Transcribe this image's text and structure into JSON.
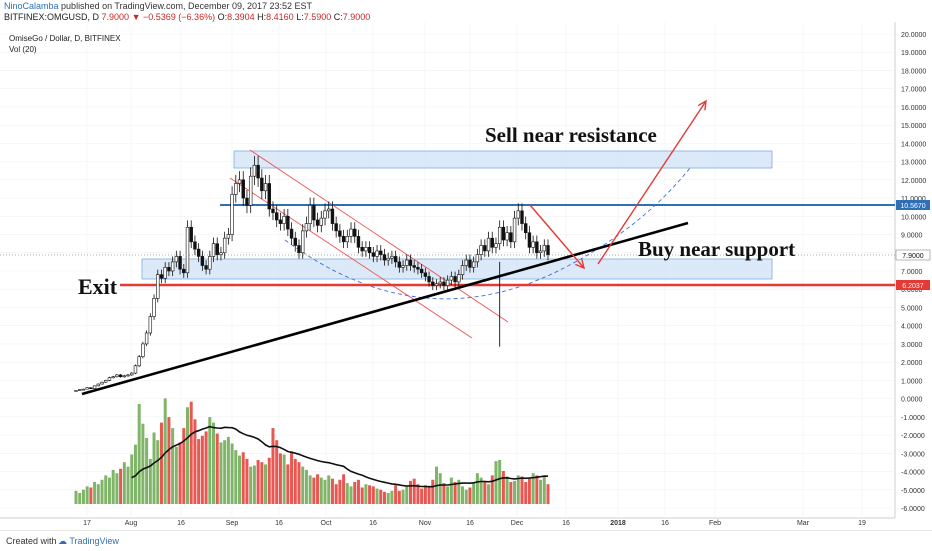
{
  "header": {
    "author": "NinoCalamba",
    "published": "published on TradingView.com, December 09, 2017 23:52 EST",
    "symbol": "BITFINEX:OMGUSD, D",
    "last": "7.9000",
    "change": "−0.5369 (−6.36%)",
    "o_label": "O:",
    "o": "8.3904",
    "h_label": "H:",
    "h": "8.4160",
    "l_label": "L:",
    "l": "7.5900",
    "c_label": "C:",
    "c": "7.9000"
  },
  "legend": {
    "title": "OmiseGo / Dollar, D, BITFINEX",
    "volume": "Vol (20)"
  },
  "annotations": {
    "sell": "Sell near resistance",
    "buy": "Buy near support",
    "exit": "Exit"
  },
  "price_tags": {
    "resistance": "10.5670",
    "last": "7.9000",
    "support": "6.2037"
  },
  "footer": {
    "created": "Created with",
    "brand": "TradingView"
  },
  "colors": {
    "up": "#6aa84f",
    "down": "#e53935",
    "resistance_line": "#2f6fb5",
    "support_line": "#e53935",
    "zone_fill": "#cfe2f6",
    "zone_stroke": "#7aaee0",
    "trendline": "#000000",
    "channel": "#ef5350"
  },
  "chart_data": {
    "type": "candlestick",
    "symbol": "OMGUSD",
    "exchange": "BITFINEX",
    "timeframe": "D",
    "x_ticks": [
      "17",
      "Aug",
      "16",
      "Sep",
      "16",
      "Oct",
      "16",
      "Nov",
      "16",
      "Dec",
      "16",
      "2018",
      "16",
      "Feb",
      "Mar",
      "19"
    ],
    "y_ticks": [
      "20.0000",
      "19.0000",
      "18.0000",
      "17.0000",
      "16.0000",
      "15.0000",
      "14.0000",
      "13.0000",
      "12.0000",
      "11.0000",
      "10.0000",
      "9.0000",
      "8.0000",
      "7.0000",
      "6.0000",
      "5.0000",
      "4.0000",
      "3.0000",
      "2.0000",
      "1.0000",
      "0.0000",
      "-1.0000",
      "-2.0000",
      "-3.0000",
      "-4.0000",
      "-5.0000",
      "-6.0000"
    ],
    "ylim": [
      -6.5,
      20.5
    ],
    "price_close_series": [
      0.45,
      0.5,
      0.52,
      0.6,
      0.55,
      0.7,
      0.8,
      0.9,
      1.0,
      1.15,
      1.2,
      1.3,
      1.2,
      1.25,
      1.3,
      1.4,
      1.8,
      2.3,
      3.0,
      3.6,
      4.5,
      5.5,
      6.8,
      6.6,
      7.2,
      7.0,
      7.5,
      7.8,
      7.1,
      6.9,
      9.4,
      8.6,
      8.2,
      7.8,
      7.3,
      7.1,
      7.8,
      8.5,
      7.9,
      8.0,
      8.8,
      9.0,
      11.2,
      11.8,
      12.0,
      11.0,
      10.6,
      12.2,
      12.8,
      12.1,
      11.4,
      11.8,
      10.4,
      10.2,
      9.8,
      9.6,
      10.0,
      9.3,
      8.8,
      8.4,
      8.0,
      9.2,
      9.6,
      10.6,
      9.8,
      9.5,
      9.9,
      10.3,
      10.4,
      9.6,
      9.2,
      8.9,
      8.6,
      8.9,
      9.3,
      8.9,
      8.3,
      8.1,
      8.3,
      8.0,
      7.8,
      8.1,
      7.9,
      7.6,
      7.7,
      7.8,
      7.5,
      7.2,
      7.3,
      7.6,
      7.3,
      7.2,
      7.1,
      6.9,
      6.7,
      6.4,
      6.2,
      6.3,
      6.4,
      6.2,
      6.5,
      6.7,
      6.4,
      6.8,
      7.3,
      7.6,
      7.2,
      7.5,
      7.9,
      8.4,
      8.1,
      8.8,
      8.3,
      8.5,
      9.4,
      8.7,
      9.1,
      8.6,
      9.9,
      10.3,
      9.6,
      9.1,
      8.3,
      8.6,
      8.0,
      8.1,
      8.4,
      7.9
    ],
    "volume_values": [
      1.2,
      1.0,
      1.3,
      1.6,
      1.5,
      2.0,
      1.8,
      2.2,
      2.6,
      2.4,
      3.1,
      2.8,
      3.2,
      3.8,
      3.4,
      4.5,
      5.4,
      9.1,
      7.3,
      6.0,
      4.1,
      6.5,
      5.8,
      7.4,
      9.6,
      7.9,
      6.9,
      5.2,
      5.6,
      6.9,
      8.8,
      9.3,
      7.7,
      5.9,
      6.2,
      6.6,
      7.9,
      7.4,
      6.4,
      5.6,
      5.8,
      6.1,
      5.5,
      4.9,
      4.4,
      4.7,
      4.1,
      3.4,
      3.5,
      4.0,
      3.8,
      3.6,
      4.2,
      6.9,
      5.8,
      4.6,
      4.5,
      3.6,
      4.8,
      4.1,
      3.8,
      3.4,
      3.1,
      2.6,
      2.4,
      2.7,
      2.4,
      2.2,
      2.6,
      2.3,
      1.8,
      2.2,
      2.7,
      1.9,
      1.6,
      2.0,
      2.2,
      1.5,
      1.8,
      1.7,
      1.6,
      1.4,
      1.3,
      1.1,
      1.0,
      1.2,
      1.7,
      1.2,
      1.3,
      1.6,
      2.1,
      2.3,
      1.8,
      1.4,
      1.7,
      1.6,
      2.2,
      3.4,
      2.8,
      1.9,
      1.6,
      2.4,
      2.0,
      2.2,
      1.6,
      1.3,
      1.5,
      1.9,
      2.8,
      2.4,
      2.1,
      1.8,
      2.6,
      3.9,
      4.0,
      3.0,
      2.5,
      2.0,
      2.1,
      2.6,
      2.5,
      2.0,
      2.4,
      2.8,
      2.6,
      2.2,
      2.5,
      1.8
    ],
    "levels": {
      "resistance": 10.567,
      "support": 6.2037,
      "last": 7.9,
      "resistance_zone": [
        12.7,
        13.7
      ],
      "support_zone": [
        6.7,
        7.8
      ]
    }
  }
}
